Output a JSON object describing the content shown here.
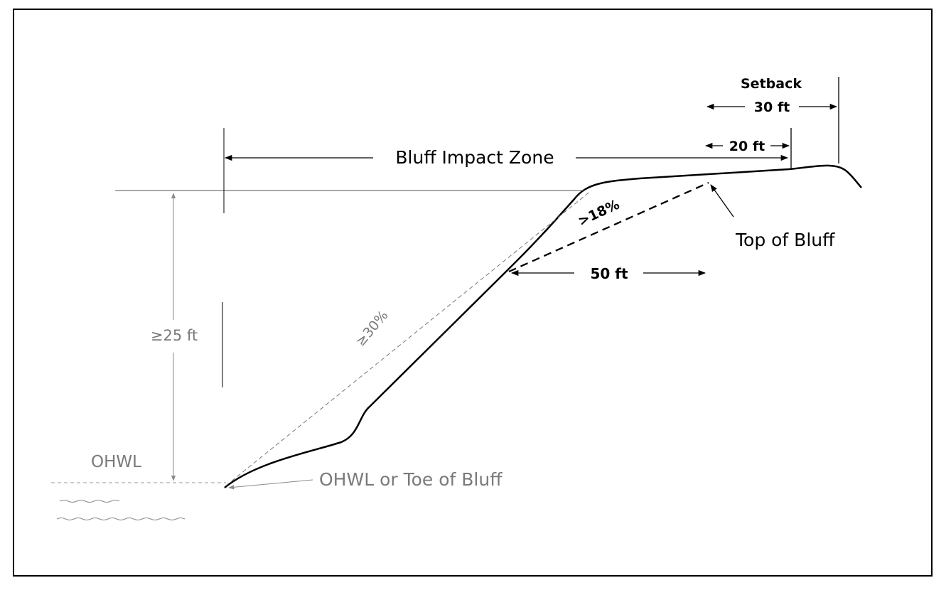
{
  "labels": {
    "bluff_impact_zone": "Bluff Impact Zone",
    "setback_title": "Setback",
    "setback_30": "30 ft",
    "setback_20": "20 ft",
    "slope_18": ">18%",
    "top_of_bluff": "Top of Bluff",
    "dist_50": "50 ft",
    "height_25": "≥25 ft",
    "slope_30": "≥30%",
    "ohwl": "OHWL",
    "ohwl_or_toe": "OHWL or Toe of Bluff"
  },
  "colors": {
    "ink": "#000000",
    "light_ink": "#7a7a7a",
    "background": "#ffffff"
  }
}
